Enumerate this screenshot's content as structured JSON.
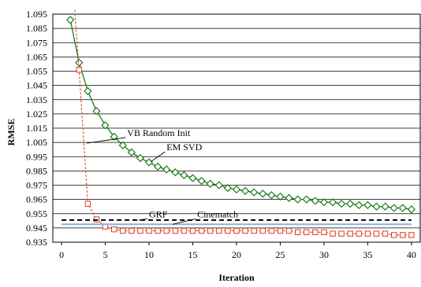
{
  "chart_data": {
    "type": "line",
    "title": "",
    "xlabel": "Iteration",
    "ylabel": "RMSE",
    "xlim": [
      -1,
      41
    ],
    "ylim": [
      0.935,
      1.095
    ],
    "xticks": [
      0,
      5,
      10,
      15,
      20,
      25,
      30,
      35,
      40
    ],
    "xtick_labels": [
      "0",
      "5",
      "10",
      "15",
      "20",
      "25",
      "30",
      "35",
      "40"
    ],
    "yticks": [
      0.935,
      0.945,
      0.955,
      0.965,
      0.975,
      0.985,
      0.995,
      1.005,
      1.015,
      1.025,
      1.035,
      1.045,
      1.055,
      1.065,
      1.075,
      1.085,
      1.095
    ],
    "ytick_labels": [
      "0.935",
      "0.945",
      "0.955",
      "0.965",
      "0.975",
      "0.985",
      "0.995",
      "1.005",
      "1.015",
      "1.025",
      "1.035",
      "1.045",
      "1.055",
      "1.065",
      "1.075",
      "1.085",
      "1.095"
    ],
    "grid": "horizontal",
    "series": [
      {
        "name": "EM SVD",
        "style": "solid",
        "marker": "diamond",
        "color": "#1a7a1a",
        "x": [
          1,
          2,
          3,
          4,
          5,
          6,
          7,
          8,
          9,
          10,
          11,
          12,
          13,
          14,
          15,
          16,
          17,
          18,
          19,
          20,
          21,
          22,
          23,
          24,
          25,
          26,
          27,
          28,
          29,
          30,
          31,
          32,
          33,
          34,
          35,
          36,
          37,
          38,
          39,
          40
        ],
        "y": [
          1.091,
          1.061,
          1.041,
          1.027,
          1.017,
          1.009,
          1.003,
          0.998,
          0.994,
          0.991,
          0.988,
          0.986,
          0.984,
          0.982,
          0.98,
          0.978,
          0.976,
          0.975,
          0.973,
          0.972,
          0.971,
          0.97,
          0.969,
          0.968,
          0.967,
          0.966,
          0.965,
          0.965,
          0.964,
          0.963,
          0.963,
          0.962,
          0.962,
          0.961,
          0.961,
          0.96,
          0.96,
          0.959,
          0.959,
          0.958
        ]
      },
      {
        "name": "VB Random Init",
        "style": "dashed",
        "marker": "square",
        "color": "#e03a1e",
        "x": [
          1.5,
          2,
          3,
          4,
          5,
          6,
          7,
          8,
          9,
          10,
          11,
          12,
          13,
          14,
          15,
          16,
          17,
          18,
          19,
          20,
          21,
          22,
          23,
          24,
          25,
          26,
          27,
          28,
          29,
          30,
          31,
          32,
          33,
          34,
          35,
          36,
          37,
          38,
          39,
          40
        ],
        "y": [
          1.098,
          1.056,
          0.962,
          0.951,
          0.946,
          0.944,
          0.943,
          0.943,
          0.943,
          0.943,
          0.943,
          0.943,
          0.943,
          0.943,
          0.943,
          0.943,
          0.943,
          0.943,
          0.943,
          0.943,
          0.943,
          0.943,
          0.943,
          0.943,
          0.943,
          0.943,
          0.942,
          0.942,
          0.942,
          0.942,
          0.941,
          0.941,
          0.941,
          0.941,
          0.941,
          0.941,
          0.941,
          0.94,
          0.94,
          0.94
        ],
        "marker_from_index": 1
      },
      {
        "name": "GRF",
        "style": "dashed-bold",
        "color": "#000000",
        "x": [
          0,
          40
        ],
        "y": [
          0.9505,
          0.9505
        ]
      },
      {
        "name": "Cinematch",
        "style": "solid",
        "color": "#8ab4d8",
        "x": [
          0,
          40
        ],
        "y": [
          0.9475,
          0.9475
        ]
      }
    ],
    "annotations": [
      {
        "text": "VB Random Init",
        "text_at": [
          7.5,
          1.0095
        ],
        "arrow_to": [
          2.9,
          1.0045
        ]
      },
      {
        "text": "EM SVD",
        "text_at": [
          12,
          0.9995
        ],
        "arrow_to": [
          10.2,
          0.9915
        ]
      },
      {
        "text": "GRF",
        "text_at": [
          10,
          0.9525
        ],
        "arrow_to": [
          8.8,
          0.9505
        ]
      },
      {
        "text": "Cinematch",
        "text_at": [
          15.5,
          0.9525
        ],
        "arrow_to": [
          12.7,
          0.9475
        ]
      }
    ]
  }
}
